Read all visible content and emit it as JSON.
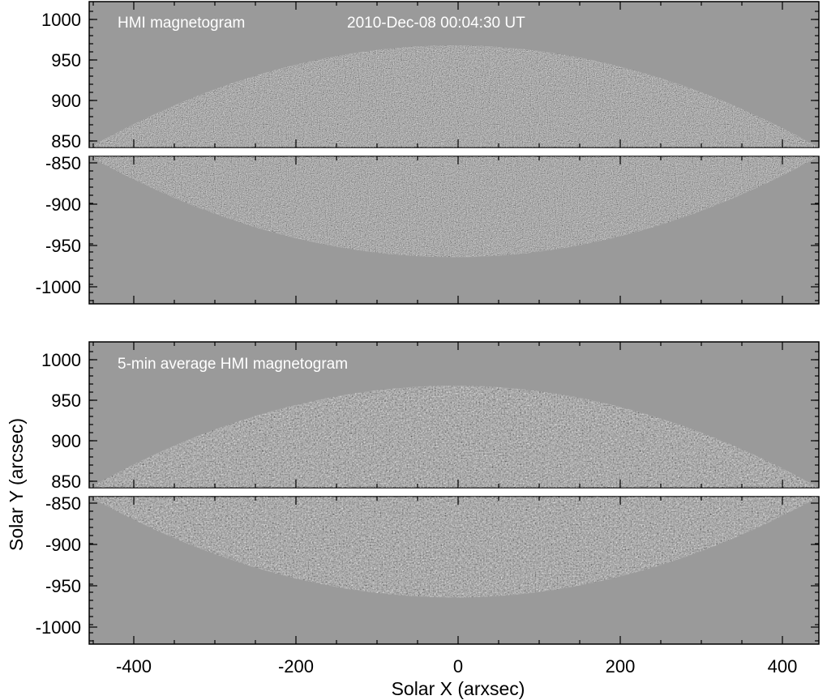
{
  "figure": {
    "top": {
      "title": "HMI magnetogram",
      "timestamp": "2010-Dec-08 00:04:30 UT"
    },
    "bottom": {
      "title": "5-min average HMI magnetogram"
    },
    "y_ticks_north": [
      "1000",
      "950",
      "900",
      "850"
    ],
    "y_ticks_south": [
      "-850",
      "-900",
      "-950",
      "-1000"
    ],
    "x_ticks": [
      "-400",
      "-200",
      "0",
      "200",
      "400"
    ],
    "ylabel": "Solar Y (arcsec)",
    "xlabel": "Solar X (arxsec)",
    "colors": {
      "background": "#9a9a9a",
      "frame": "#000000",
      "text": "#ffffff"
    }
  }
}
